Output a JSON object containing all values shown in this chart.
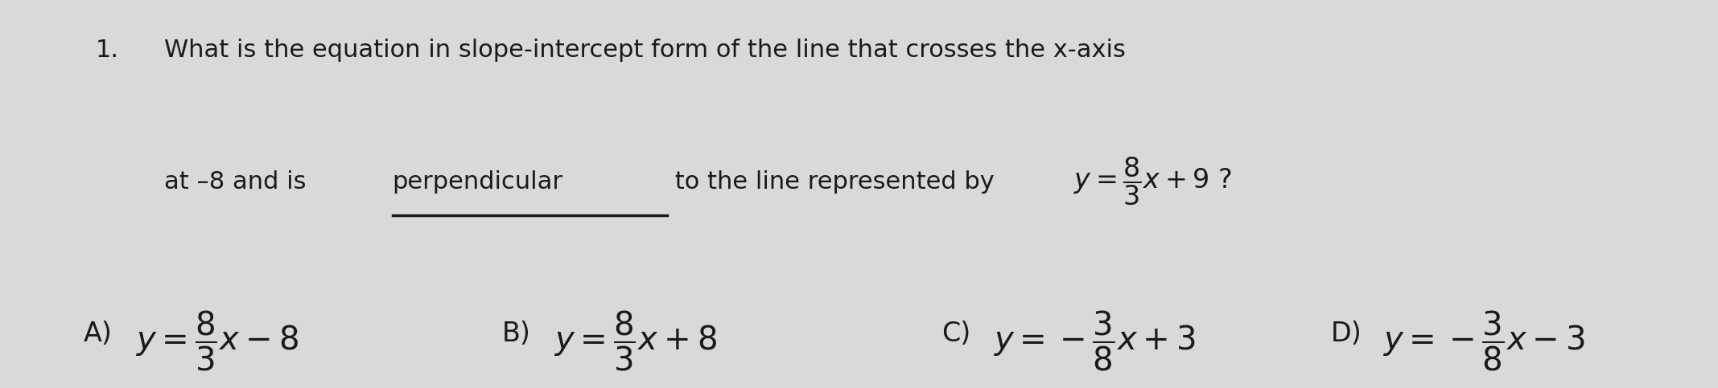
{
  "background_color": "#d9d9d9",
  "question_number": "1.",
  "question_line1": "What is the equation in slope-intercept form of the line that crosses the x-axis",
  "question_line2_start": "at –8 and is ",
  "question_line2_underline": "perpendicular",
  "question_line2_rest": " to the line represented by",
  "question_formula": "$y=\\dfrac{8}{3}x+9\\ ?$",
  "answer_A_label": "A)",
  "answer_A_formula": "$y=\\dfrac{8}{3}x-8$",
  "answer_B_label": "B)",
  "answer_B_formula": "$y=\\dfrac{8}{3}x+8$",
  "answer_C_label": "C)",
  "answer_C_formula": "$y=-\\dfrac{3}{8}x+3$",
  "answer_D_label": "D)",
  "answer_D_formula": "$y=-\\dfrac{3}{8}x-3$",
  "text_color": "#1a1a1a",
  "fontsize_question": 22,
  "fontsize_answers": 26
}
